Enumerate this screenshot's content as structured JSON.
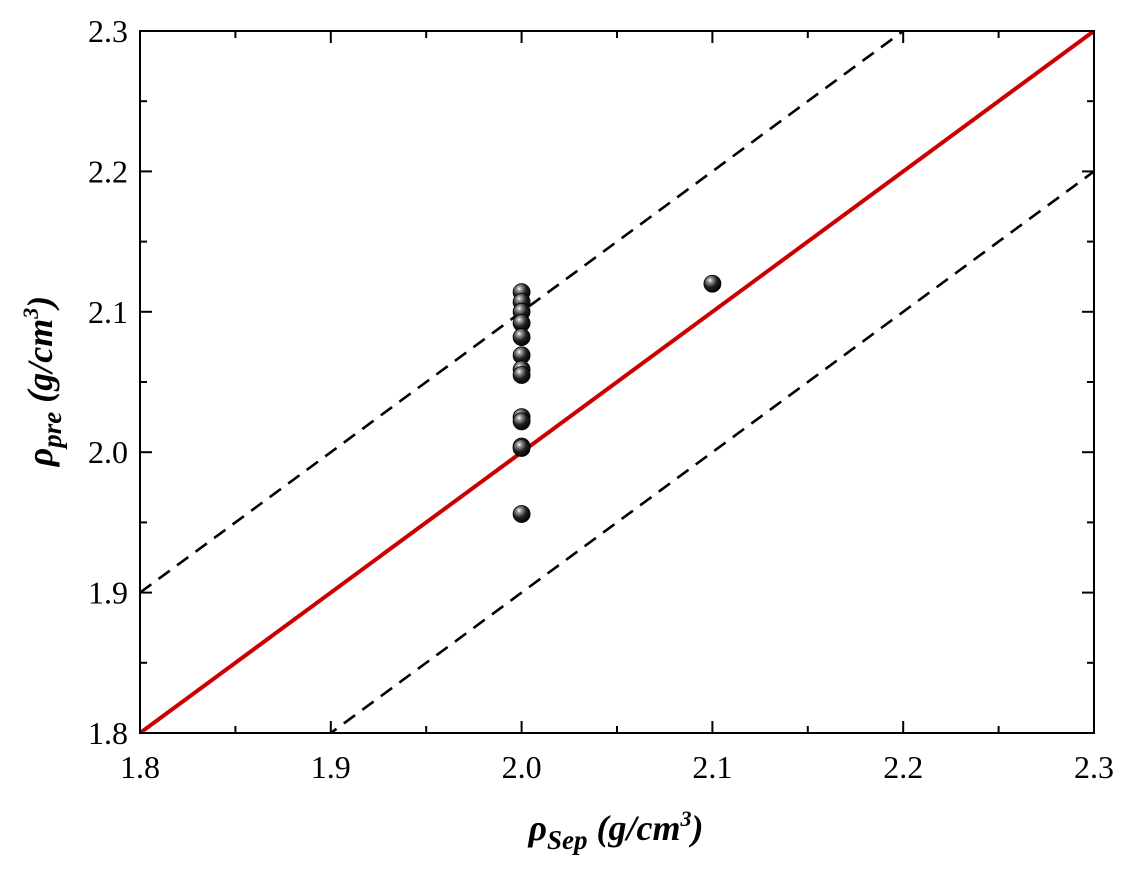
{
  "chart_data": {
    "type": "scatter",
    "title": "",
    "xlim": [
      1.8,
      2.3
    ],
    "ylim": [
      1.8,
      2.3
    ],
    "xticks": [
      "1.8",
      "1.9",
      "2.0",
      "2.1",
      "2.2",
      "2.3"
    ],
    "yticks": [
      "1.8",
      "1.9",
      "2.0",
      "2.1",
      "2.2",
      "2.3"
    ],
    "xlabel": {
      "symbol": "ρ",
      "subscript": "Sep",
      "unit_open": " (g/cm",
      "superscript": "3",
      "unit_close": ")"
    },
    "ylabel": {
      "symbol": "ρ",
      "subscript": "pre",
      "unit_open": " (g/cm",
      "superscript": "3",
      "unit_close": ")"
    },
    "grid": false,
    "legend": "none",
    "series": [
      {
        "x": [
          2.0,
          2.0,
          2.0,
          2.0,
          2.0,
          2.0,
          2.0,
          2.0,
          2.0,
          2.0,
          2.0,
          2.0,
          2.0,
          2.1
        ],
        "y": [
          2.114,
          2.107,
          2.1,
          2.092,
          2.082,
          2.069,
          2.059,
          2.055,
          2.025,
          2.022,
          2.004,
          2.003,
          1.956,
          2.12
        ],
        "color": "#000000"
      }
    ],
    "reference_lines": [
      {
        "slope": 1,
        "intercept": 0.0,
        "style": "solid",
        "color": "#cc0000"
      },
      {
        "slope": 1,
        "intercept": 0.1,
        "style": "dashed",
        "color": "#000000"
      },
      {
        "slope": 1,
        "intercept": -0.1,
        "style": "dashed",
        "color": "#000000"
      }
    ]
  }
}
